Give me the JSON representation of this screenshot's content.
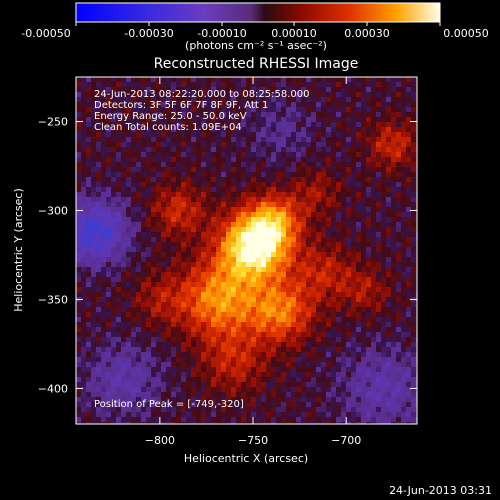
{
  "colorbar": {
    "tick_labels": [
      "-0.00050",
      "-0.00030",
      "-0.00010",
      "0.00010",
      "0.00030",
      "0.00050"
    ],
    "units_text": "(photons cm⁻² s⁻¹ asec⁻²)",
    "range": [
      -0.0005,
      0.0005
    ]
  },
  "chart_data": {
    "type": "heatmap",
    "title": "Reconstructed RHESSI Image",
    "xlabel": "Heliocentric X (arcsec)",
    "ylabel": "Heliocentric Y (arcsec)",
    "xlim": [
      -845,
      -662
    ],
    "ylim": [
      -420,
      -225
    ],
    "x_ticks": [
      -800,
      -750,
      -700
    ],
    "y_ticks": [
      -400,
      -350,
      -300,
      -250
    ],
    "annotations": [
      "24-Jun-2013 08:22:20.000 to 08:25:58.000",
      "Detectors: 3F 5F 6F 7F 8F 9F, Att 1",
      "Energy Range: 25.0 - 50.0 keV",
      "Clean    Total counts: 1.09E+04"
    ],
    "peak_text": "Position of Peak = [-749,-320]",
    "peak_position": [
      -749,
      -320
    ],
    "sources": [
      {
        "x": -749,
        "y": -320,
        "amplitude": 0.0005,
        "sigma": 13
      },
      {
        "x": -738,
        "y": -305,
        "amplitude": 0.00022,
        "sigma": 10
      },
      {
        "x": -768,
        "y": -350,
        "amplitude": 0.0003,
        "sigma": 15
      },
      {
        "x": -735,
        "y": -357,
        "amplitude": 0.00026,
        "sigma": 12
      },
      {
        "x": -790,
        "y": -300,
        "amplitude": 0.00016,
        "sigma": 10
      },
      {
        "x": -712,
        "y": -335,
        "amplitude": 0.00014,
        "sigma": 11
      },
      {
        "x": -760,
        "y": -385,
        "amplitude": 0.00014,
        "sigma": 12
      },
      {
        "x": -675,
        "y": -263,
        "amplitude": 0.00016,
        "sigma": 9
      },
      {
        "x": -690,
        "y": -345,
        "amplitude": 0.00011,
        "sigma": 9
      },
      {
        "x": -800,
        "y": -350,
        "amplitude": 0.0001,
        "sigma": 10
      },
      {
        "x": -716,
        "y": -290,
        "amplitude": 0.0001,
        "sigma": 9
      },
      {
        "x": -735,
        "y": -255,
        "amplitude": -8e-05,
        "sigma": 12
      },
      {
        "x": -835,
        "y": -312,
        "amplitude": -0.0003,
        "sigma": 12
      },
      {
        "x": -820,
        "y": -395,
        "amplitude": -0.00014,
        "sigma": 14
      },
      {
        "x": -680,
        "y": -400,
        "amplitude": -0.00014,
        "sigma": 16
      }
    ]
  },
  "footer": {
    "timestamp": "24-Jun-2013 03:31"
  }
}
